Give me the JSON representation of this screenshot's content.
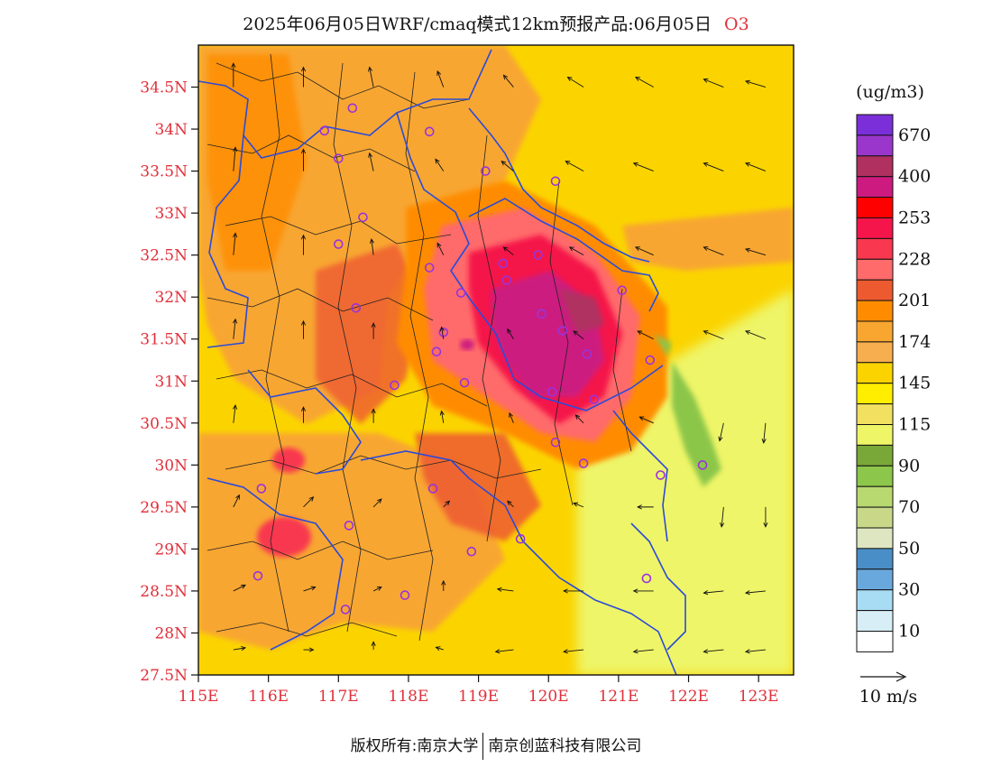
{
  "title": {
    "main": "2025年06月05日WRF/cmaq模式12km预报产品:06月05日",
    "species": "O3"
  },
  "map": {
    "lon_range": [
      115,
      123.5
    ],
    "lat_range": [
      27.5,
      35
    ],
    "y_ticks": [
      "34.5N",
      "34N",
      "33.5N",
      "33N",
      "32.5N",
      "32N",
      "31.5N",
      "31N",
      "30.5N",
      "30N",
      "29.5N",
      "29N",
      "28.5N",
      "28N",
      "27.5N"
    ],
    "y_tick_values": [
      34.5,
      34,
      33.5,
      33,
      32.5,
      32,
      31.5,
      31,
      30.5,
      30,
      29.5,
      29,
      28.5,
      28,
      27.5
    ],
    "x_ticks": [
      "115E",
      "116E",
      "117E",
      "118E",
      "119E",
      "120E",
      "121E",
      "122E",
      "123E"
    ],
    "x_tick_values": [
      115,
      116,
      117,
      118,
      119,
      120,
      121,
      122,
      123
    ],
    "colors": {
      "boundary": "#2b4bd8",
      "county_line": "#222222",
      "station": "#9933dd"
    }
  },
  "chart_data": {
    "type": "heatmap",
    "title": "2025年06月05日WRF/cmaq模式12km预报产品:06月05日 O3",
    "units": "(ug/m3)",
    "xlabel": "",
    "ylabel": "",
    "xlim": [
      115,
      123.5
    ],
    "ylim": [
      27.5,
      35
    ],
    "color_scale": [
      {
        "label": "670",
        "color": "#7a2fd8"
      },
      {
        "label": "",
        "color": "#9a36cc"
      },
      {
        "label": "400",
        "color": "#b03060"
      },
      {
        "label": "",
        "color": "#cc1a80"
      },
      {
        "label": "253",
        "color": "#ff0000"
      },
      {
        "label": "",
        "color": "#f5154a"
      },
      {
        "label": "228",
        "color": "#f8384f"
      },
      {
        "label": "",
        "color": "#ff6a6a"
      },
      {
        "label": "201",
        "color": "#ee5a30"
      },
      {
        "label": "",
        "color": "#ff8c00"
      },
      {
        "label": "174",
        "color": "#f8a630"
      },
      {
        "label": "",
        "color": "#f6ae4e"
      },
      {
        "label": "145",
        "color": "#fbd400"
      },
      {
        "label": "",
        "color": "#ffee00"
      },
      {
        "label": "115",
        "color": "#f2e060"
      },
      {
        "label": "",
        "color": "#eef567"
      },
      {
        "label": "90",
        "color": "#7aa838"
      },
      {
        "label": "",
        "color": "#8cc64a"
      },
      {
        "label": "70",
        "color": "#b8d870"
      },
      {
        "label": "",
        "color": "#c8d888"
      },
      {
        "label": "50",
        "color": "#dde6c0"
      },
      {
        "label": "",
        "color": "#4a8ec8"
      },
      {
        "label": "30",
        "color": "#69a8dd"
      },
      {
        "label": "",
        "color": "#a8dcf4"
      },
      {
        "label": "10",
        "color": "#d8eef6"
      },
      {
        "label": "",
        "color": "#ffffff"
      }
    ],
    "wind_scale_label": "10 m/s",
    "stations": [
      [
        117.2,
        34.25
      ],
      [
        116.8,
        33.98
      ],
      [
        118.3,
        33.97
      ],
      [
        117.0,
        33.65
      ],
      [
        119.1,
        33.5
      ],
      [
        120.1,
        33.38
      ],
      [
        117.35,
        32.95
      ],
      [
        117.0,
        32.63
      ],
      [
        118.3,
        32.35
      ],
      [
        119.85,
        32.5
      ],
      [
        119.35,
        32.4
      ],
      [
        119.4,
        32.2
      ],
      [
        118.75,
        32.05
      ],
      [
        121.05,
        32.08
      ],
      [
        117.25,
        31.87
      ],
      [
        119.9,
        31.8
      ],
      [
        120.2,
        31.6
      ],
      [
        118.5,
        31.58
      ],
      [
        118.4,
        31.35
      ],
      [
        120.55,
        31.32
      ],
      [
        121.45,
        31.25
      ],
      [
        117.8,
        30.95
      ],
      [
        118.8,
        30.98
      ],
      [
        120.05,
        30.87
      ],
      [
        120.65,
        30.78
      ],
      [
        120.1,
        30.27
      ],
      [
        120.5,
        30.02
      ],
      [
        115.9,
        29.72
      ],
      [
        118.35,
        29.72
      ],
      [
        121.6,
        29.88
      ],
      [
        122.2,
        30.0
      ],
      [
        117.15,
        29.28
      ],
      [
        118.9,
        28.97
      ],
      [
        119.6,
        29.12
      ],
      [
        115.85,
        28.68
      ],
      [
        121.4,
        28.65
      ],
      [
        117.95,
        28.45
      ],
      [
        117.1,
        28.28
      ]
    ],
    "winds": [
      [
        115.5,
        34.5,
        0,
        1.2
      ],
      [
        116.5,
        34.5,
        0,
        1.0
      ],
      [
        117.5,
        34.5,
        -0.2,
        1.0
      ],
      [
        118.5,
        34.5,
        -0.3,
        0.8
      ],
      [
        119.5,
        34.5,
        -0.5,
        0.6
      ],
      [
        120.5,
        34.5,
        -0.8,
        0.5
      ],
      [
        121.5,
        34.5,
        -0.9,
        0.5
      ],
      [
        122.5,
        34.5,
        -1.0,
        0.4
      ],
      [
        123.1,
        34.5,
        -1.0,
        0.3
      ],
      [
        115.5,
        33.5,
        0.1,
        1.2
      ],
      [
        116.5,
        33.5,
        0,
        1.1
      ],
      [
        117.5,
        33.5,
        -0.2,
        0.9
      ],
      [
        118.5,
        33.5,
        -0.4,
        0.6
      ],
      [
        119.5,
        33.5,
        -0.6,
        0.5
      ],
      [
        120.5,
        33.5,
        -0.9,
        0.5
      ],
      [
        121.5,
        33.5,
        -1.0,
        0.4
      ],
      [
        122.5,
        33.5,
        -1.0,
        0.4
      ],
      [
        123.1,
        33.5,
        -1.0,
        0.4
      ],
      [
        115.5,
        32.5,
        0.1,
        1.1
      ],
      [
        116.5,
        32.5,
        0,
        1.0
      ],
      [
        117.5,
        32.5,
        -0.1,
        0.8
      ],
      [
        118.5,
        32.5,
        -0.3,
        0.6
      ],
      [
        119.5,
        32.5,
        -0.5,
        0.4
      ],
      [
        120.5,
        32.5,
        -0.7,
        0.4
      ],
      [
        121.5,
        32.5,
        -0.9,
        0.4
      ],
      [
        122.5,
        32.5,
        -1.0,
        0.4
      ],
      [
        123.1,
        32.5,
        -1.0,
        0.3
      ],
      [
        115.5,
        31.5,
        0.1,
        1.0
      ],
      [
        116.5,
        31.5,
        0,
        0.9
      ],
      [
        117.5,
        31.5,
        0,
        0.8
      ],
      [
        118.5,
        31.5,
        -0.1,
        0.6
      ],
      [
        119.5,
        31.5,
        -0.3,
        0.5
      ],
      [
        120.5,
        31.5,
        -0.5,
        0.4
      ],
      [
        121.5,
        31.5,
        -0.8,
        0.4
      ],
      [
        122.5,
        31.5,
        -1.0,
        0.4
      ],
      [
        123.1,
        31.5,
        -1.0,
        0.4
      ],
      [
        115.5,
        30.5,
        0.1,
        0.9
      ],
      [
        116.5,
        30.5,
        0,
        0.8
      ],
      [
        117.5,
        30.5,
        0,
        0.7
      ],
      [
        118.5,
        30.5,
        -0.1,
        0.6
      ],
      [
        119.5,
        30.5,
        -0.2,
        0.5
      ],
      [
        120.5,
        30.5,
        -0.4,
        0.4
      ],
      [
        121.5,
        30.5,
        -0.7,
        0.3
      ],
      [
        122.5,
        30.5,
        -0.2,
        -0.9
      ],
      [
        123.1,
        30.5,
        -0.1,
        -1.0
      ],
      [
        115.5,
        29.5,
        0.3,
        0.6
      ],
      [
        116.5,
        29.5,
        0.5,
        0.5
      ],
      [
        117.5,
        29.5,
        0.4,
        0.4
      ],
      [
        118.5,
        29.5,
        0.3,
        0.3
      ],
      [
        119.5,
        29.5,
        -0.3,
        0.3
      ],
      [
        120.5,
        29.5,
        -0.5,
        0.2
      ],
      [
        121.5,
        29.5,
        -0.8,
        0.0
      ],
      [
        122.5,
        29.5,
        -0.1,
        -1.0
      ],
      [
        123.1,
        29.5,
        0,
        -1.0
      ],
      [
        115.5,
        28.5,
        0.6,
        0.3
      ],
      [
        116.5,
        28.5,
        0.6,
        0.2
      ],
      [
        117.5,
        28.5,
        0.4,
        0.2
      ],
      [
        118.5,
        28.5,
        0,
        0.5
      ],
      [
        119.5,
        28.5,
        -0.8,
        0.1
      ],
      [
        120.5,
        28.5,
        -1.0,
        0.0
      ],
      [
        121.5,
        28.5,
        -1.0,
        0.0
      ],
      [
        122.5,
        28.5,
        -1.0,
        -0.1
      ],
      [
        123.1,
        28.5,
        -1.0,
        -0.1
      ],
      [
        115.5,
        27.8,
        0.6,
        0.1
      ],
      [
        116.5,
        27.8,
        0.5,
        0.0
      ],
      [
        117.5,
        27.8,
        0,
        0.1
      ],
      [
        118.5,
        27.8,
        -0.3,
        0.1
      ],
      [
        119.5,
        27.8,
        -0.9,
        -0.1
      ],
      [
        120.5,
        27.8,
        -1.0,
        -0.1
      ],
      [
        121.5,
        27.8,
        -1.0,
        -0.1
      ],
      [
        122.5,
        27.8,
        -1.0,
        -0.1
      ],
      [
        123.1,
        27.8,
        -1.0,
        -0.1
      ]
    ]
  },
  "footer": {
    "left": "版权所有:南京大学",
    "right": "南京创蓝科技有限公司"
  }
}
